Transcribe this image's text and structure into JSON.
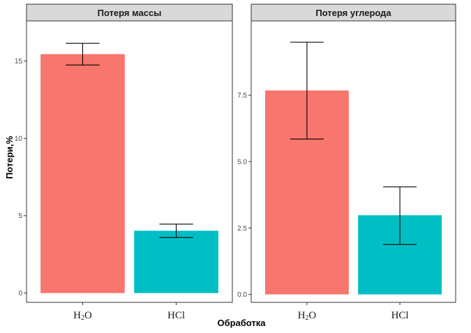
{
  "chart_data": {
    "type": "bar",
    "xlabel": "Обработка",
    "ylabel": "Потери,%",
    "categories": [
      "H2O",
      "HCl"
    ],
    "category_labels": [
      {
        "main": "H",
        "sub": "2",
        "tail": "O"
      },
      {
        "main": "HCl",
        "sub": "",
        "tail": ""
      }
    ],
    "colors": {
      "H2O": "#F8766D",
      "HCl": "#00BFC4",
      "errorbar": "#000000",
      "strip_fill": "#D9D9D9",
      "frame": "#333333"
    },
    "panels": [
      {
        "title": "Потеря массы",
        "values": [
          15.45,
          4.03
        ],
        "error_low": [
          14.75,
          3.6
        ],
        "error_high": [
          16.15,
          4.46
        ],
        "ylim": [
          -0.6,
          17.6
        ],
        "yticks": [
          0,
          5,
          10,
          15
        ],
        "ytick_labels": [
          "0",
          "5",
          "10",
          "15"
        ],
        "grid": false
      },
      {
        "title": "Потеря углерода",
        "values": [
          7.68,
          2.98
        ],
        "error_low": [
          5.85,
          1.88
        ],
        "error_high": [
          9.5,
          4.05
        ],
        "ylim": [
          -0.3,
          10.3
        ],
        "yticks": [
          0,
          2.5,
          5,
          7.5
        ],
        "ytick_labels": [
          "0.0",
          "2.5",
          "5.0",
          "7.5"
        ],
        "grid": false
      }
    ]
  }
}
